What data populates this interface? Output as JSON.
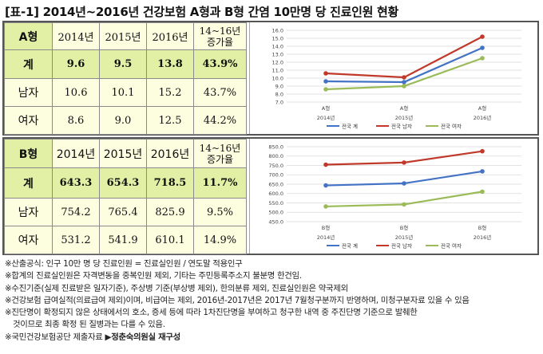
{
  "title": "[표-1] 2014년~2016년 건강보험 A형과 B형 간염 10만명 당 진료인원 현황",
  "section_a": {
    "header": {
      "label": "A형",
      "years": [
        "2014년",
        "2015년",
        "2016년"
      ],
      "rate_label_1": "14~16년",
      "rate_label_2": "증가율"
    },
    "rows": [
      {
        "label": "계",
        "values": [
          "9.6",
          "9.5",
          "13.8"
        ],
        "rate": "43.9%"
      },
      {
        "label": "남자",
        "values": [
          "10.6",
          "10.1",
          "15.2"
        ],
        "rate": "43.7%"
      },
      {
        "label": "여자",
        "values": [
          "8.6",
          "9.0",
          "12.5"
        ],
        "rate": "44.2%"
      }
    ]
  },
  "section_b": {
    "header": {
      "label": "B형",
      "years": [
        "2014년",
        "2015년",
        "2016년"
      ],
      "rate_label_1": "14~16년",
      "rate_label_2": "증가율"
    },
    "rows": [
      {
        "label": "계",
        "values": [
          "643.3",
          "654.3",
          "718.5"
        ],
        "rate": "11.7%"
      },
      {
        "label": "남자",
        "values": [
          "754.2",
          "765.4",
          "825.9"
        ],
        "rate": "9.5%"
      },
      {
        "label": "여자",
        "values": [
          "531.2",
          "541.9",
          "610.1"
        ],
        "rate": "14.9%"
      }
    ]
  },
  "chart_data": [
    {
      "type": "line",
      "categories": [
        "A형",
        "A형",
        "A형"
      ],
      "years": [
        "2014년",
        "2015년",
        "2016년"
      ],
      "ylim": [
        7.0,
        16.0
      ],
      "yticks": [
        "7.0",
        "8.0",
        "9.0",
        "10.0",
        "11.0",
        "12.0",
        "13.0",
        "14.0",
        "15.0",
        "16.0"
      ],
      "grid": true,
      "legend": "bottom",
      "series": [
        {
          "name": "전국 계",
          "color": "#4472c4",
          "values": [
            9.6,
            9.5,
            13.8
          ]
        },
        {
          "name": "전국 남자",
          "color": "#c0392b",
          "values": [
            10.6,
            10.1,
            15.2
          ]
        },
        {
          "name": "전국 여자",
          "color": "#9bbb59",
          "values": [
            8.6,
            9.0,
            12.5
          ]
        }
      ]
    },
    {
      "type": "line",
      "categories": [
        "B형",
        "B형",
        "B형"
      ],
      "years": [
        "2014년",
        "2015년",
        "2016년"
      ],
      "ylim": [
        450,
        850
      ],
      "yticks": [
        "450.0",
        "500.0",
        "550.0",
        "600.0",
        "650.0",
        "700.0",
        "750.0",
        "800.0",
        "850.0"
      ],
      "grid": true,
      "legend": "bottom",
      "series": [
        {
          "name": "전국 계",
          "color": "#4472c4",
          "values": [
            643.3,
            654.3,
            718.5
          ]
        },
        {
          "name": "전국 남자",
          "color": "#c0392b",
          "values": [
            754.2,
            765.4,
            825.9
          ]
        },
        {
          "name": "전국 여자",
          "color": "#9bbb59",
          "values": [
            531.2,
            541.9,
            610.1
          ]
        }
      ]
    }
  ],
  "notes": [
    "※산출공식: 인구 10만 명 당 진료인원 = 진료실인원 / 연도말 적용인구",
    "※합계의 진료실인원은 자격변동을 중복인원 제외, 기타는 주민등록주소지 불분명 한건임.",
    "※수진기준(실제 진료받은 일자기준), 주상병 기준(부상병 제외), 한의분류 제외, 진료실인원은 약국제외",
    "※건강보험 급여실적(의료급여 제외)이며, 비급여는 제외, 2016년-2017년은 2017년 7월청구분까지 반영하며, 미청구분자료 있을 수 있음",
    "※진단명이 확정되지 않은 상태에서의 호소, 증세 등에 따라 1차진단명을 부여하고 청구한 내역 중 주진단명 기준으로 발췌한",
    "것이므로 최종 확정 된 질병과는 다를 수 있음."
  ],
  "source": {
    "text": "※국민건강보험공단 제출자료 ",
    "maker": "▶정춘숙의원실 재구성"
  }
}
